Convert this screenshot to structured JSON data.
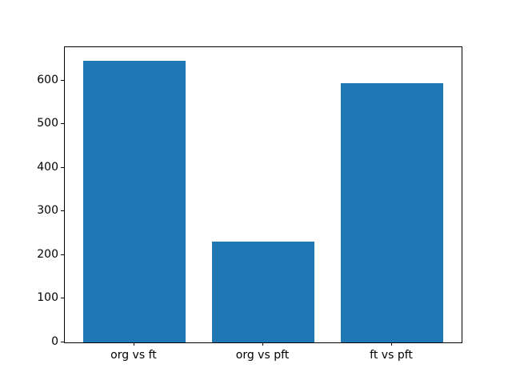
{
  "chart_data": {
    "type": "bar",
    "title": "",
    "xlabel": "",
    "ylabel": "",
    "categories": [
      "org vs ft",
      "org vs pft",
      "ft vs pft"
    ],
    "values": [
      645,
      232,
      595
    ],
    "yticks": [
      0,
      100,
      200,
      300,
      400,
      500,
      600
    ],
    "ylim": [
      0,
      677
    ],
    "bar_color": "#1f77b4",
    "axes_color": "#000000",
    "background_color": "#ffffff",
    "grid": false,
    "legend": null
  }
}
